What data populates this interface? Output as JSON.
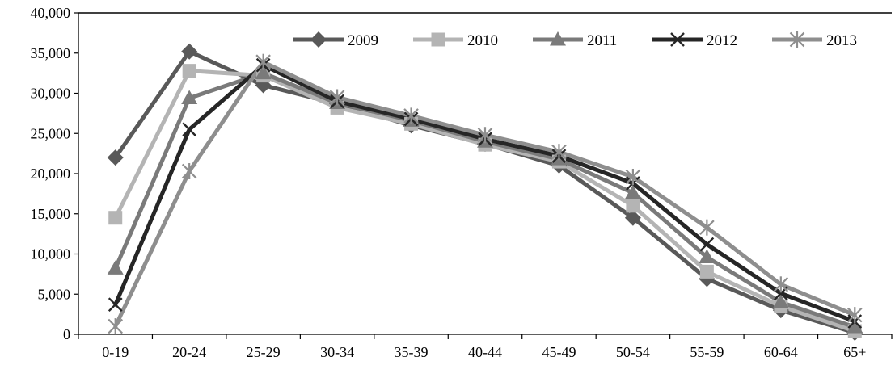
{
  "chart_data": {
    "type": "line",
    "title": "",
    "xlabel": "",
    "ylabel": "",
    "categories": [
      "0-19",
      "20-24",
      "25-29",
      "30-34",
      "35-39",
      "40-44",
      "45-49",
      "50-54",
      "55-59",
      "60-64",
      "65+"
    ],
    "ylim": [
      0,
      40000
    ],
    "yticks": [
      "0",
      "5,000",
      "10,000",
      "15,000",
      "20,000",
      "25,000",
      "30,000",
      "35,000",
      "40,000"
    ],
    "grid": false,
    "legend_position": "top-right",
    "series": [
      {
        "name": "2009",
        "color": "#595959",
        "marker": "diamond",
        "values": [
          22000,
          35200,
          31000,
          28700,
          26000,
          23700,
          21000,
          14500,
          6900,
          3000,
          200
        ]
      },
      {
        "name": "2010",
        "color": "#b4b4b4",
        "marker": "square",
        "values": [
          14500,
          32800,
          32200,
          28200,
          26200,
          23600,
          21500,
          16000,
          7800,
          3500,
          400
        ]
      },
      {
        "name": "2011",
        "color": "#7a7a7a",
        "marker": "triangle",
        "values": [
          8200,
          29400,
          32500,
          28800,
          26600,
          24000,
          21800,
          17600,
          9600,
          4000,
          900
        ]
      },
      {
        "name": "2012",
        "color": "#262626",
        "marker": "x",
        "values": [
          3700,
          25500,
          33500,
          29000,
          26800,
          24300,
          22200,
          18800,
          11200,
          5100,
          1600
        ]
      },
      {
        "name": "2013",
        "color": "#8e8e8e",
        "marker": "star",
        "values": [
          1000,
          20300,
          33900,
          29500,
          27200,
          24800,
          22700,
          19600,
          13300,
          6200,
          2400
        ]
      }
    ]
  }
}
